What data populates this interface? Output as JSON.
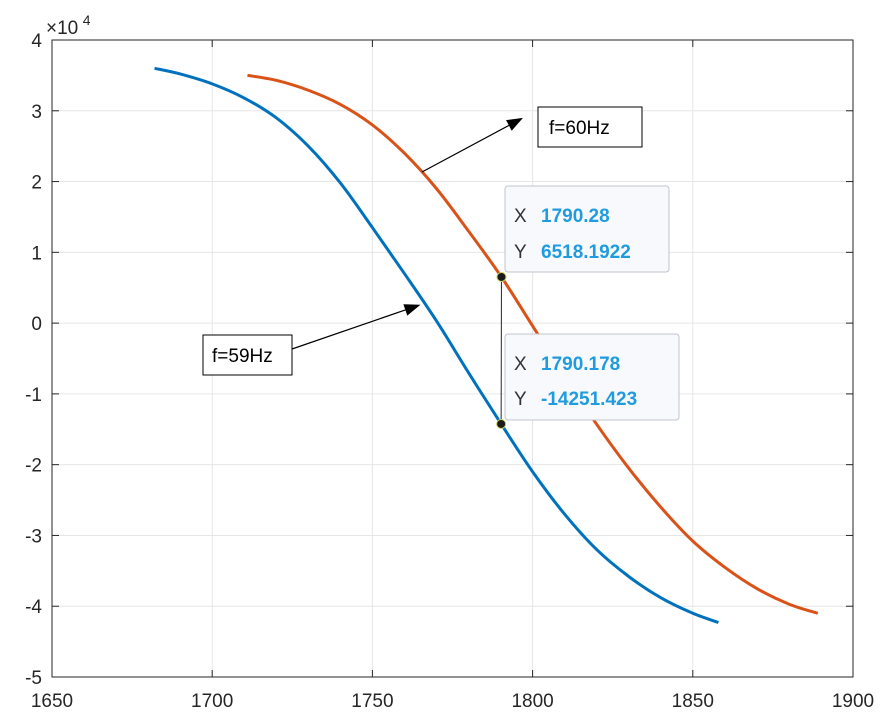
{
  "chart_data": {
    "type": "line",
    "xlim": [
      1650,
      1900
    ],
    "ylim": [
      -50000,
      40000
    ],
    "x_ticks": [
      "1650",
      "1700",
      "1750",
      "1800",
      "1850",
      "1900"
    ],
    "y_ticks": [
      "-5",
      "-4",
      "-3",
      "-2",
      "-1",
      "0",
      "1",
      "2",
      "3",
      "4"
    ],
    "y_exponent_label": {
      "base": "×10",
      "power": "4"
    },
    "grid": true,
    "series": [
      {
        "color": "#0072bd",
        "x": [
          1682,
          1690,
          1700,
          1710,
          1720,
          1730,
          1740,
          1750,
          1760,
          1770,
          1780,
          1790.178,
          1800,
          1810,
          1820,
          1830,
          1840,
          1850,
          1858
        ],
        "y": [
          36000,
          35200,
          33800,
          31800,
          29000,
          25000,
          19800,
          13500,
          7000,
          300,
          -7000,
          -14251,
          -21000,
          -27000,
          -32000,
          -35800,
          -38800,
          -41000,
          -42300
        ]
      },
      {
        "color": "#d95319",
        "x": [
          1711,
          1720,
          1730,
          1740,
          1750,
          1760,
          1770,
          1780,
          1790.28,
          1800,
          1810,
          1820,
          1830,
          1840,
          1850,
          1860,
          1870,
          1880,
          1889
        ],
        "y": [
          35000,
          34300,
          32900,
          30900,
          28000,
          24000,
          19000,
          13000,
          6518,
          -400,
          -7500,
          -14300,
          -20500,
          -26000,
          -30800,
          -34500,
          -37500,
          -39700,
          -41000
        ]
      }
    ],
    "annotations": [
      {
        "text": "f=60Hz",
        "arrow_to": [
          1797,
          29000
        ]
      },
      {
        "text": "f=59Hz",
        "arrow_to": [
          1765,
          2600
        ]
      }
    ],
    "datatips": [
      {
        "x_key": "X",
        "x_value": "1790.28",
        "y_key": "Y",
        "y_value": "6518.1922",
        "point": [
          1790.28,
          6518.1922
        ]
      },
      {
        "x_key": "X",
        "x_value": "1790.178",
        "y_key": "Y",
        "y_value": "-14251.423",
        "point": [
          1790.178,
          -14251.423
        ]
      }
    ]
  }
}
